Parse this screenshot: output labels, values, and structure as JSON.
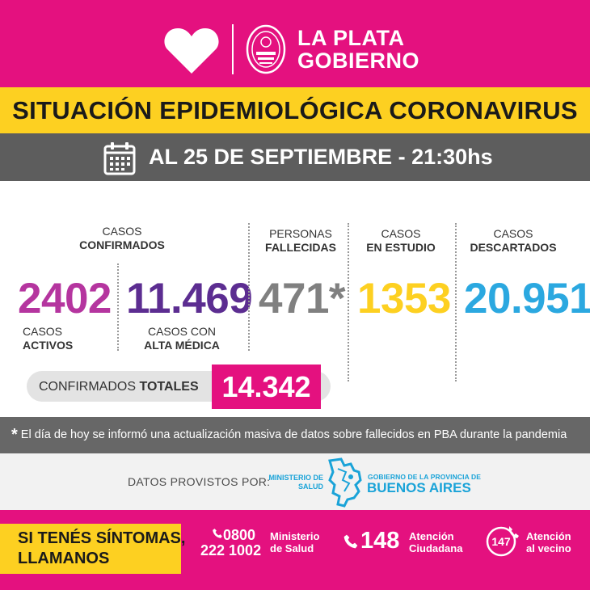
{
  "header": {
    "brand_line1": "LA PLATA",
    "brand_line2": "GOBIERNO"
  },
  "title": "SITUACIÓN EPIDEMIOLÓGICA CORONAVIRUS",
  "date_label": "AL 25 DE SEPTIEMBRE - 21:30hs",
  "stats": {
    "confirmados_header_1": "CASOS",
    "confirmados_header_2": "CONFIRMADOS",
    "activos": {
      "value": "2402",
      "label_1": "CASOS",
      "label_2": "ACTIVOS",
      "color": "#b5359f"
    },
    "alta": {
      "value": "11.469",
      "label_1": "CASOS CON",
      "label_2": "ALTA MÉDICA",
      "color": "#5c2d91"
    },
    "fallecidas": {
      "value": "471*",
      "label_1": "PERSONAS",
      "label_2": "FALLECIDAS",
      "color": "#808080"
    },
    "estudio": {
      "value": "1353",
      "label_1": "CASOS",
      "label_2": "EN ESTUDIO",
      "color": "#fdd021"
    },
    "descartados": {
      "value": "20.951",
      "label_1": "CASOS",
      "label_2": "DESCARTADOS",
      "color": "#2ba8e0"
    }
  },
  "totals": {
    "label_plain": "CONFIRMADOS ",
    "label_bold": "TOTALES",
    "value": "14.342"
  },
  "note": {
    "star": "*",
    "text": "El día de hoy se informó una actualización masiva de datos sobre fallecidos en PBA durante la pandemia"
  },
  "provider": {
    "label": "DATOS PROVISTOS POR:",
    "ministerio_1": "MINISTERIO DE",
    "ministerio_2": "SALUD",
    "gobierno_small": "GOBIERNO DE LA PROVINCIA DE",
    "gobierno_big": "BUENOS AIRES"
  },
  "footer": {
    "symptoms_1": "SI TENÉS SÍNTOMAS,",
    "symptoms_2": "LLAMANOS",
    "salud_number_1": "0800",
    "salud_number_2": "222 1002",
    "salud_label_1": "Ministerio",
    "salud_label_2": "de Salud",
    "ciudadana_number": "148",
    "ciudadana_label_1": "Atención",
    "ciudadana_label_2": "Ciudadana",
    "vecino_number": "147",
    "vecino_label_1": "Atención",
    "vecino_label_2": "al vecino"
  },
  "colors": {
    "magenta": "#e4117f",
    "yellow": "#fdd021",
    "gray_band": "#5d5d5d"
  }
}
